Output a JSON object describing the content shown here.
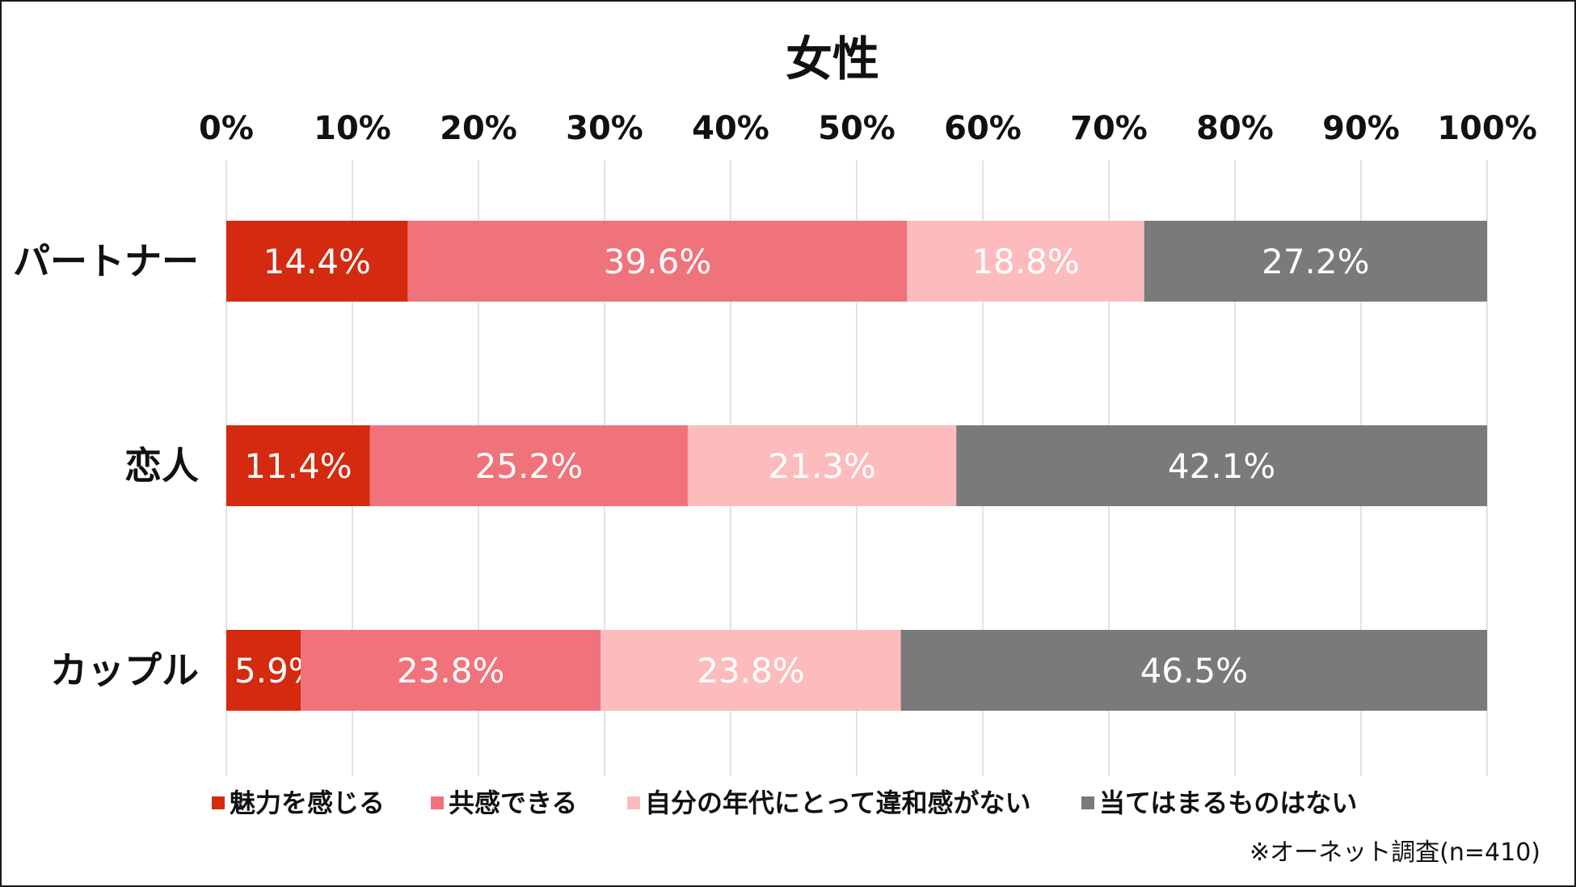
{
  "chart_data": {
    "type": "bar",
    "orientation": "horizontal",
    "stacked": true,
    "title": "女性",
    "categories": [
      "パートナー",
      "恋人",
      "カップル"
    ],
    "xlim": [
      0,
      100
    ],
    "x_ticks": [
      "0%",
      "10%",
      "20%",
      "30%",
      "40%",
      "50%",
      "60%",
      "70%",
      "80%",
      "90%",
      "100%"
    ],
    "x_axis_position": "top",
    "grid": true,
    "legend_position": "bottom",
    "series": [
      {
        "name": "魅力を感じる",
        "color": "#D42A10",
        "values": [
          14.4,
          11.4,
          5.9
        ],
        "labels": [
          "14.4%",
          "11.4%",
          "5.9%"
        ]
      },
      {
        "name": "共感できる",
        "color": "#F0737C",
        "values": [
          39.6,
          25.2,
          23.8
        ],
        "labels": [
          "39.6%",
          "25.2%",
          "23.8%"
        ]
      },
      {
        "name": "自分の年代にとって違和感がない",
        "color": "#FCBCBE",
        "values": [
          18.8,
          21.3,
          23.8
        ],
        "labels": [
          "18.8%",
          "21.3%",
          "23.8%"
        ]
      },
      {
        "name": "当てはまるものはない",
        "color": "#7A7A7A",
        "values": [
          27.2,
          42.1,
          46.5
        ],
        "labels": [
          "27.2%",
          "42.1%",
          "46.5%"
        ]
      }
    ],
    "note": "※オーネット調査(n=410)"
  }
}
